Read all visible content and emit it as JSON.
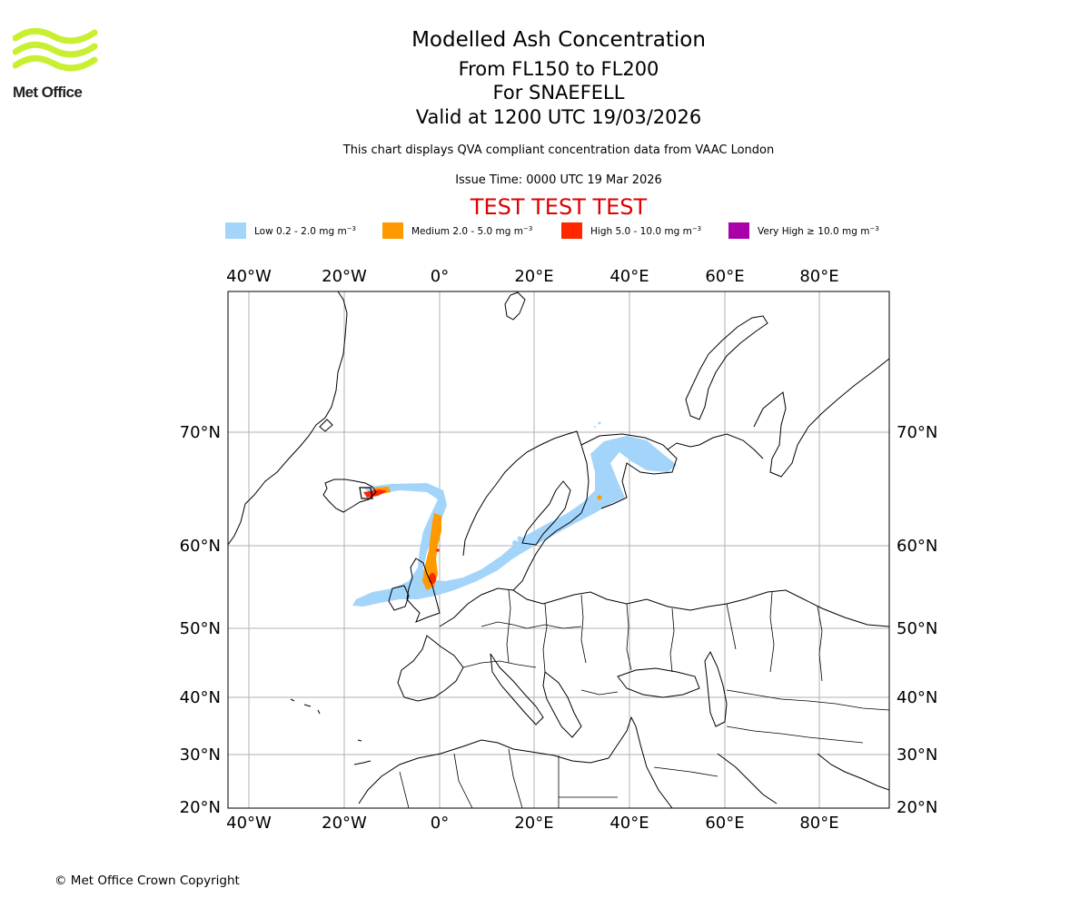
{
  "header": {
    "logo_text": "Met Office",
    "title": "Modelled Ash Concentration",
    "level_range": "From FL150 to FL200",
    "volcano": "For SNAEFELL",
    "valid_time": "Valid at 1200 UTC 19/03/2026",
    "compliance_note": "This chart displays QVA compliant concentration data from VAAC London",
    "issue_time": "Issue Time: 0000 UTC 19 Mar 2026",
    "test_banner": "TEST TEST TEST"
  },
  "legend": [
    {
      "text": "Low 0.2 - 2.0 mg m",
      "unit_exp": "−3",
      "color": "#a3d4fa"
    },
    {
      "text": "Medium 2.0 - 5.0 mg m",
      "unit_exp": "−3",
      "color": "#ff9900"
    },
    {
      "text": "High 5.0 - 10.0 mg m",
      "unit_exp": "−3",
      "color": "#ff2600"
    },
    {
      "text": "Very High ≥ 10.0 mg m",
      "unit_exp": "−3",
      "color": "#aa00aa"
    }
  ],
  "map": {
    "lon_labels": [
      "40°W",
      "20°W",
      "0°",
      "20°E",
      "40°E",
      "60°E",
      "80°E"
    ],
    "lat_labels": [
      "70°N",
      "60°N",
      "50°N",
      "40°N",
      "30°N",
      "20°N"
    ],
    "grid": true,
    "ash_colors": {
      "low": "#a3d4fa",
      "medium": "#ff9900",
      "high": "#ff2600"
    }
  },
  "footer": {
    "copyright": "© Met Office Crown Copyright"
  }
}
